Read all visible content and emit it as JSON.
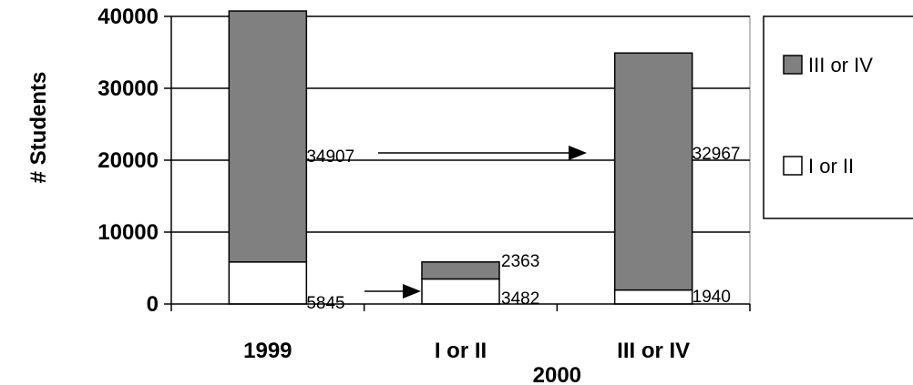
{
  "chart_data": {
    "type": "bar",
    "stacked": true,
    "categories": [
      "1999",
      "I or II",
      "III or IV"
    ],
    "group_label": "2000",
    "group_categories": [
      "I or II",
      "III or IV"
    ],
    "ylabel": "# Students",
    "ylim": [
      0,
      40000
    ],
    "yticks": [
      "0",
      "10000",
      "20000",
      "30000",
      "40000"
    ],
    "grid": true,
    "legend_position": "right",
    "series": [
      {
        "name": "I or II",
        "color": "#ffffff",
        "values": [
          5845,
          3482,
          1940
        ]
      },
      {
        "name": "III or IV",
        "color": "#808080",
        "values": [
          34907,
          2363,
          32967
        ]
      }
    ],
    "data_labels": [
      "34907",
      "5845",
      "2363",
      "3482",
      "32967",
      "1940"
    ],
    "annotations": [
      "arrow from 1999 III or IV to 2000 III or IV",
      "arrow from 1999 I or II to 2000 I or II"
    ]
  }
}
